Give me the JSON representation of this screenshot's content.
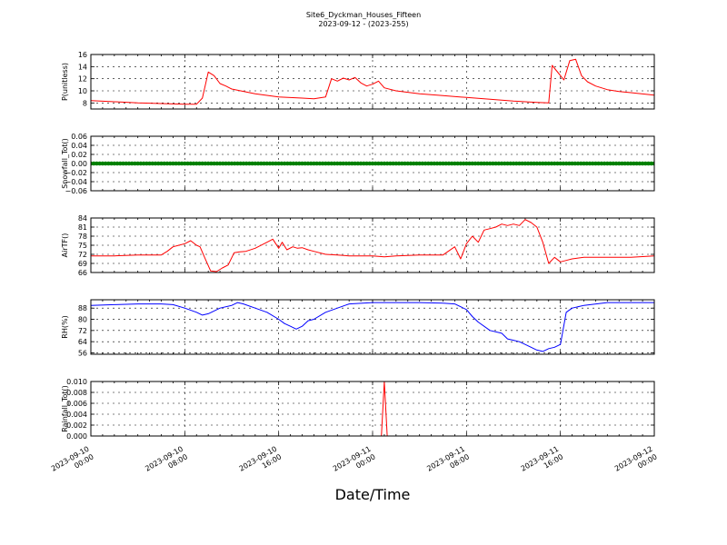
{
  "title": "Site6_Dyckman_Houses_Fifteen",
  "subtitle": "2023-09-12 - (2023-255)",
  "xlabel": "Date/Time",
  "x_ticks": [
    {
      "line1": "2023-09-10",
      "line2": "00:00",
      "h": 0
    },
    {
      "line1": "2023-09-10",
      "line2": "08:00",
      "h": 8
    },
    {
      "line1": "2023-09-10",
      "line2": "16:00",
      "h": 16
    },
    {
      "line1": "2023-09-11",
      "line2": "00:00",
      "h": 24
    },
    {
      "line1": "2023-09-11",
      "line2": "08:00",
      "h": 32
    },
    {
      "line1": "2023-09-11",
      "line2": "16:00",
      "h": 40
    },
    {
      "line1": "2023-09-12",
      "line2": "00:00",
      "h": 48
    }
  ],
  "chart_data": [
    {
      "type": "line",
      "ylabel": "P(unitless)",
      "color": "#ff0000",
      "ylim": [
        7,
        16
      ],
      "yticks": [
        8,
        10,
        12,
        14,
        16
      ],
      "ytick_labels": [
        "8",
        "10",
        "12",
        "14",
        "16"
      ],
      "grid": true,
      "x": [
        0,
        2,
        4,
        6,
        8,
        9,
        9.5,
        10,
        10.5,
        11,
        11.5,
        12,
        14,
        16,
        18,
        19,
        20,
        20.5,
        21,
        21.5,
        22,
        22.5,
        23,
        23.5,
        24,
        24.5,
        25,
        26,
        28,
        30,
        32,
        34,
        36,
        38,
        39,
        39.3,
        39.8,
        40.3,
        40.8,
        41.3,
        41.8,
        42.3,
        43,
        44,
        45,
        46,
        48
      ],
      "y": [
        8.4,
        8.2,
        8.0,
        7.9,
        7.8,
        7.8,
        8.8,
        13.1,
        12.5,
        11.2,
        10.8,
        10.3,
        9.5,
        9.0,
        8.8,
        8.7,
        9.0,
        12.0,
        11.6,
        12.1,
        11.8,
        12.2,
        11.3,
        10.8,
        11.1,
        11.6,
        10.5,
        10.0,
        9.5,
        9.2,
        8.9,
        8.6,
        8.3,
        8.1,
        8.0,
        14.2,
        13.0,
        11.8,
        15.0,
        15.2,
        12.5,
        11.5,
        10.8,
        10.2,
        9.9,
        9.7,
        9.3
      ]
    },
    {
      "type": "scatter",
      "ylabel": "Snowfall_Tot()",
      "color": "#008000",
      "ylim": [
        -0.06,
        0.06
      ],
      "yticks": [
        -0.06,
        -0.04,
        -0.02,
        0.0,
        0.02,
        0.04,
        0.06
      ],
      "ytick_labels": [
        "−0.06",
        "−0.04",
        "−0.02",
        "0.00",
        "0.02",
        "0.04",
        "0.06"
      ],
      "grid": true,
      "x_start": 0,
      "x_end": 48,
      "x_step": 0.25,
      "value": 0
    },
    {
      "type": "line",
      "ylabel": "AirTF()",
      "color": "#ff0000",
      "ylim": [
        66,
        84
      ],
      "yticks": [
        66,
        69,
        72,
        75,
        78,
        81,
        84
      ],
      "ytick_labels": [
        "66",
        "69",
        "72",
        "75",
        "78",
        "81",
        "84"
      ],
      "grid": true,
      "x": [
        0,
        2,
        4,
        6,
        6.5,
        7,
        7.5,
        8,
        8.5,
        9,
        9.3,
        9.8,
        10.2,
        10.7,
        11.2,
        11.7,
        12.2,
        12.7,
        13.2,
        14,
        15,
        15.5,
        16,
        16.3,
        16.7,
        17.2,
        17.6,
        18,
        18.5,
        19,
        20,
        21,
        22,
        24,
        25,
        26,
        28,
        30,
        31,
        31.5,
        32,
        32.5,
        33,
        33.5,
        34,
        34.5,
        35,
        35.5,
        36,
        36.5,
        37,
        37.5,
        38,
        38.5,
        39,
        39.5,
        40,
        40.5,
        41,
        42,
        43,
        44,
        46,
        48
      ],
      "y": [
        71.5,
        71.5,
        71.8,
        71.8,
        73,
        74.5,
        75,
        75.5,
        76.5,
        75,
        74.5,
        70,
        66.5,
        66.3,
        67.5,
        68.5,
        72.5,
        72.8,
        73,
        74,
        76,
        77,
        74,
        76,
        73.5,
        74.5,
        74,
        74.2,
        73.5,
        73,
        72,
        71.8,
        71.5,
        71.5,
        71.2,
        71.5,
        71.8,
        71.8,
        74.5,
        70.5,
        75.5,
        78,
        76,
        80,
        80.5,
        81,
        82,
        81.5,
        82,
        81.5,
        83.5,
        82.5,
        81,
        76,
        69,
        71,
        69.5,
        70,
        70.5,
        71,
        71,
        71,
        71,
        71.5
      ]
    },
    {
      "type": "line",
      "ylabel": "RH(%)",
      "color": "#0000ff",
      "ylim": [
        55,
        94
      ],
      "yticks": [
        56,
        64,
        72,
        80,
        88
      ],
      "ytick_labels": [
        "56",
        "64",
        "72",
        "80",
        "88"
      ],
      "grid": true,
      "x": [
        0,
        2,
        4,
        6,
        7,
        8,
        9,
        9.5,
        10,
        11,
        12,
        12.5,
        13,
        14,
        15,
        16,
        16.5,
        17,
        17.5,
        18,
        18.5,
        19,
        20,
        21,
        22,
        24,
        26,
        28,
        30,
        31,
        32,
        32.5,
        33,
        34,
        35,
        35.5,
        36,
        36.5,
        37,
        37.5,
        38,
        38.5,
        39,
        39.5,
        40,
        40.5,
        41,
        42,
        44,
        46,
        48
      ],
      "y": [
        90,
        90.5,
        91,
        91,
        90.5,
        88,
        85,
        83,
        84,
        88,
        90,
        92,
        91,
        88,
        85,
        80,
        77,
        75,
        73,
        75,
        79,
        80,
        85,
        88,
        91,
        92,
        92,
        92,
        91.5,
        91,
        87,
        82,
        78,
        72,
        70,
        66,
        65,
        64,
        62,
        60,
        58,
        57,
        59,
        60,
        62,
        85,
        88,
        90,
        92,
        92,
        92
      ]
    },
    {
      "type": "line",
      "ylabel": "Rainfall_Tot()",
      "color": "#ff0000",
      "ylim": [
        0,
        0.01
      ],
      "yticks": [
        0,
        0.002,
        0.004,
        0.006,
        0.008,
        0.01
      ],
      "ytick_labels": [
        "0.000",
        "0.002",
        "0.004",
        "0.006",
        "0.008",
        "0.010"
      ],
      "grid": true,
      "x": [
        0,
        24.75,
        25,
        25.25,
        48
      ],
      "y": [
        0,
        0,
        0.01,
        0,
        0
      ]
    }
  ]
}
